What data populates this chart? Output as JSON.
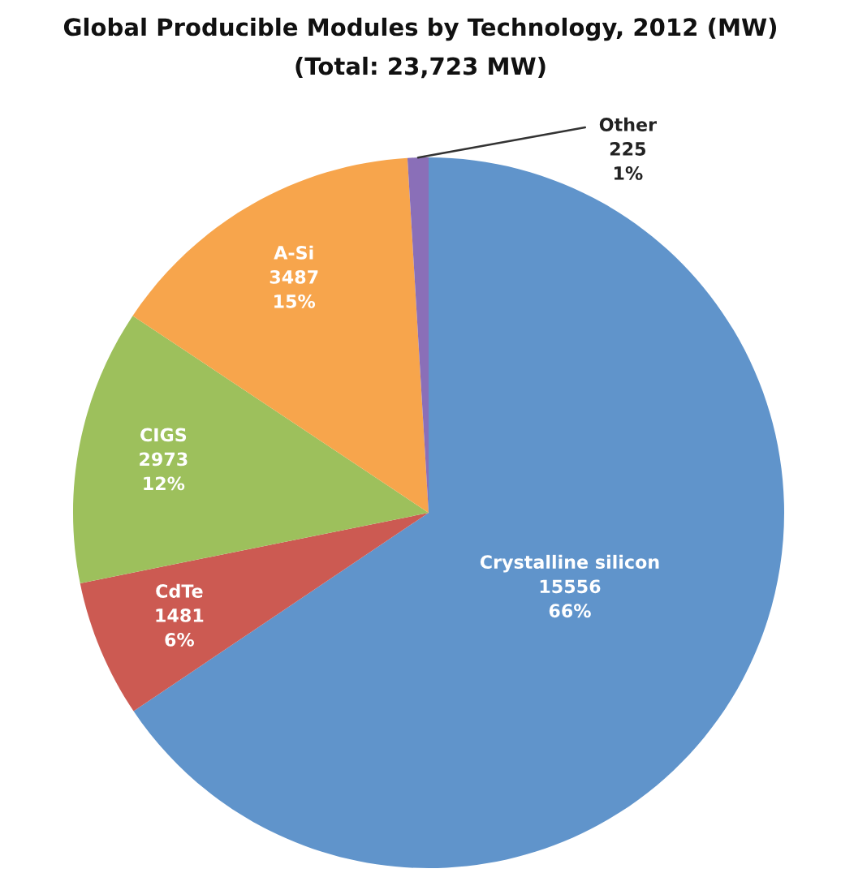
{
  "chart_data": {
    "type": "pie",
    "title": "Global Producible Modules by Technology, 2012 (MW)",
    "subtitle": "(Total: 23,723 MW)",
    "categories": [
      "Crystalline silicon",
      "CdTe",
      "CIGS",
      "A-Si",
      "Other"
    ],
    "values": [
      15556,
      1481,
      2973,
      3487,
      225
    ],
    "colors": [
      "#6094cb",
      "#cc5a52",
      "#9dc05c",
      "#f7a54c",
      "#8a6fb8"
    ],
    "value_labels": [
      "15556\n66%",
      "1481\n6%",
      "2973\n12%",
      "3487\n15%",
      "225\n1%"
    ]
  }
}
